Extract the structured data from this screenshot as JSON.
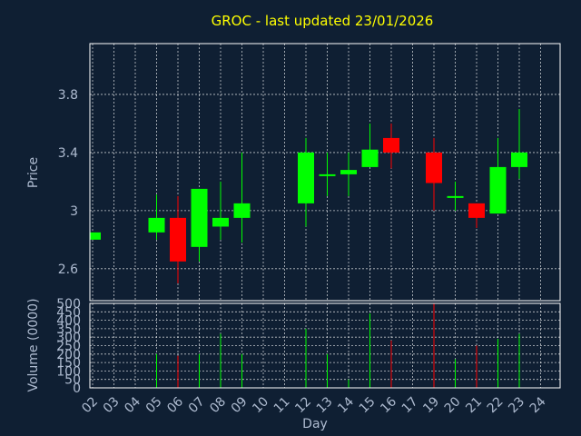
{
  "chart_data": {
    "type": "candlestick",
    "title": "GROC - last updated 23/01/2026",
    "xlabel": "Day",
    "price_panel": {
      "ylabel": "Price",
      "ylim": [
        2.38,
        4.15
      ],
      "yticks": [
        2.6,
        3,
        3.4,
        3.8
      ],
      "ytick_labels": [
        "2.6",
        "3",
        "3.4",
        "3.8"
      ]
    },
    "volume_panel": {
      "ylabel": "Volume (0000)",
      "ylim": [
        0,
        500
      ],
      "yticks": [
        0,
        50,
        100,
        150,
        200,
        250,
        300,
        350,
        400,
        450,
        500
      ],
      "ytick_labels": [
        "0",
        "50",
        "100",
        "150",
        "200",
        "250",
        "300",
        "350",
        "400",
        "450",
        "500"
      ]
    },
    "x_tick_labels": [
      "02",
      "03",
      "04",
      "05",
      "06",
      "07",
      "08",
      "09",
      "10",
      "11",
      "12",
      "13",
      "14",
      "15",
      "16",
      "17",
      "19",
      "20",
      "21",
      "22",
      "23",
      "24"
    ],
    "grid": true,
    "colors": {
      "background": "#0f1f33",
      "plot_border": "#ffffff",
      "grid": "#ffffff",
      "up": "#00ff00",
      "down": "#ff0000",
      "title": "#ffff00",
      "axis_text": "#aebbd0"
    },
    "candles": [
      {
        "day": "02",
        "open": 2.8,
        "close": 2.85,
        "high": 2.85,
        "low": 2.8,
        "volume": 0
      },
      {
        "day": "05",
        "open": 2.85,
        "close": 2.95,
        "high": 3.11,
        "low": 2.8,
        "volume": 200
      },
      {
        "day": "06",
        "open": 2.95,
        "close": 2.65,
        "high": 3.1,
        "low": 2.5,
        "volume": 190
      },
      {
        "day": "07",
        "open": 2.75,
        "close": 3.15,
        "high": 3.15,
        "low": 2.65,
        "volume": 200
      },
      {
        "day": "08",
        "open": 2.89,
        "close": 2.95,
        "high": 3.2,
        "low": 2.8,
        "volume": 320
      },
      {
        "day": "09",
        "open": 2.95,
        "close": 3.05,
        "high": 3.4,
        "low": 2.78,
        "volume": 200
      },
      {
        "day": "12",
        "open": 3.05,
        "close": 3.4,
        "high": 3.5,
        "low": 2.89,
        "volume": 350
      },
      {
        "day": "13",
        "open": 3.24,
        "close": 3.25,
        "high": 3.4,
        "low": 3.1,
        "volume": 200
      },
      {
        "day": "14",
        "open": 3.25,
        "close": 3.28,
        "high": 3.4,
        "low": 3.1,
        "volume": 50
      },
      {
        "day": "15",
        "open": 3.3,
        "close": 3.42,
        "high": 3.6,
        "low": 3.3,
        "volume": 440
      },
      {
        "day": "16",
        "open": 3.5,
        "close": 3.4,
        "high": 3.6,
        "low": 3.29,
        "volume": 280
      },
      {
        "day": "19",
        "open": 3.4,
        "close": 3.19,
        "high": 3.5,
        "low": 3.0,
        "volume": 500
      },
      {
        "day": "20",
        "open": 3.09,
        "close": 3.1,
        "high": 3.2,
        "low": 3.0,
        "volume": 170
      },
      {
        "day": "21",
        "open": 3.05,
        "close": 2.95,
        "high": 3.05,
        "low": 2.88,
        "volume": 250
      },
      {
        "day": "22",
        "open": 2.98,
        "close": 3.3,
        "high": 3.5,
        "low": 2.98,
        "volume": 290
      },
      {
        "day": "23",
        "open": 3.3,
        "close": 3.4,
        "high": 3.7,
        "low": 3.22,
        "volume": 320
      }
    ]
  }
}
